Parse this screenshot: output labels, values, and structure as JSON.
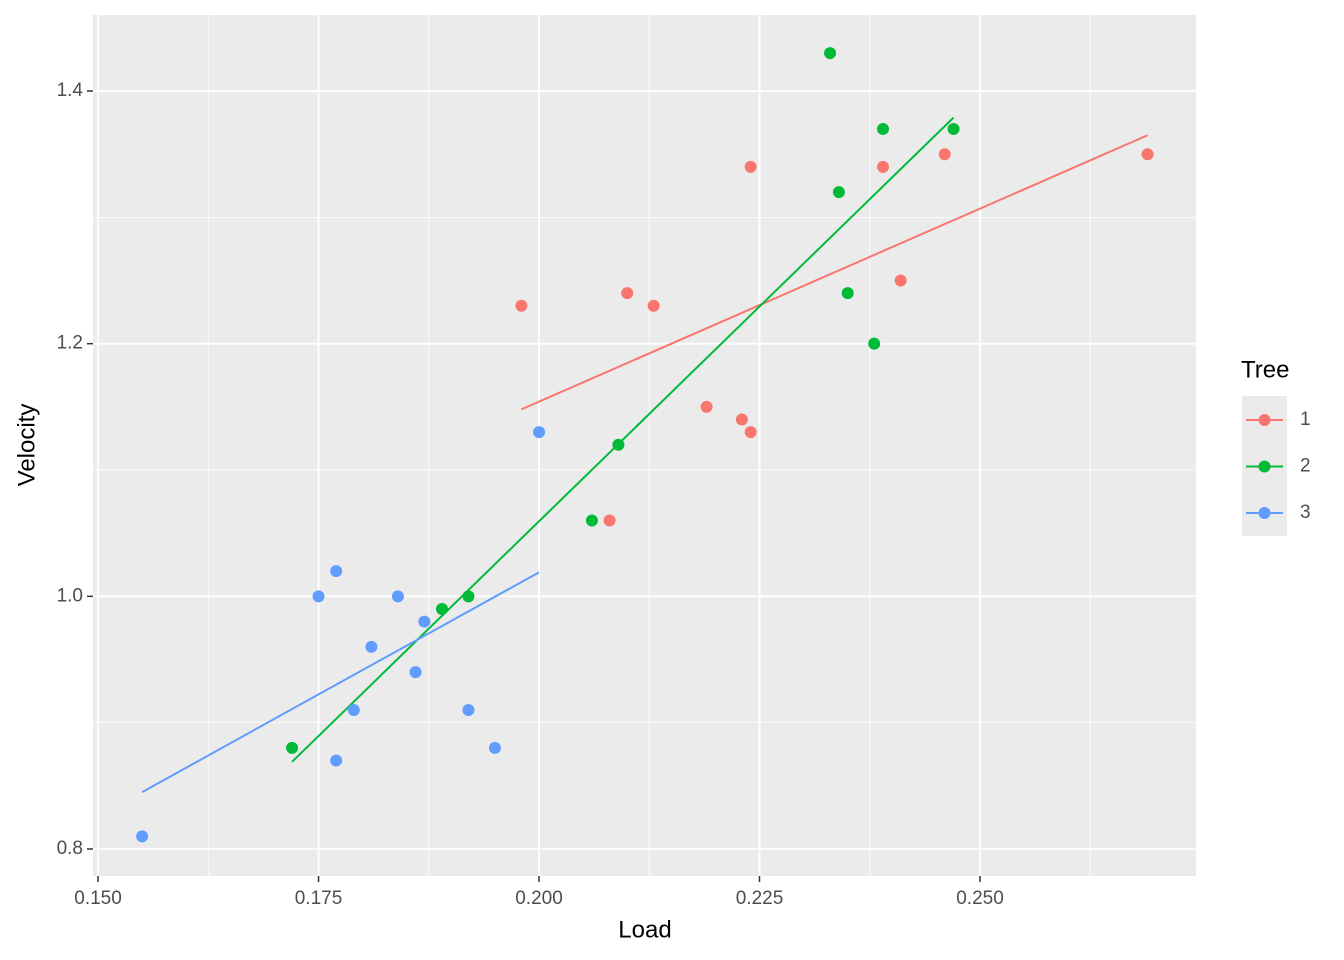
{
  "chart_data": {
    "type": "scatter",
    "x_label": "Load",
    "y_label": "Velocity",
    "legend_title": "Tree",
    "xlim": [
      0.14943,
      0.27449
    ],
    "ylim": [
      0.7786,
      1.4602
    ],
    "xticks": [
      {
        "value": 0.15,
        "label": "0.150"
      },
      {
        "value": 0.175,
        "label": "0.175"
      },
      {
        "value": 0.2,
        "label": "0.200"
      },
      {
        "value": 0.225,
        "label": "0.225"
      },
      {
        "value": 0.25,
        "label": "0.250"
      }
    ],
    "yticks": [
      0.8,
      {
        "value": 1,
        "label": "1.0"
      },
      1.2,
      1.4
    ],
    "grid": true,
    "legend_position": "right",
    "series": [
      {
        "name": "1",
        "color": "#f8766d",
        "x": [
          0.198,
          0.21,
          0.213,
          0.219,
          0.223,
          0.224,
          0.224,
          0.208,
          0.239,
          0.241,
          0.246,
          0.269
        ],
        "values": [
          1.23,
          1.24,
          1.23,
          1.15,
          1.14,
          1.13,
          1.34,
          1.06,
          1.34,
          1.25,
          1.35,
          1.35
        ],
        "fit": {
          "x": [
            0.198,
            0.269
          ],
          "values": [
            1.148,
            1.365
          ]
        }
      },
      {
        "name": "2",
        "color": "#00ba38",
        "x": [
          0.172,
          0.189,
          0.192,
          0.206,
          0.209,
          0.233,
          0.234,
          0.235,
          0.238,
          0.239,
          0.247
        ],
        "values": [
          0.88,
          0.99,
          1.0,
          1.06,
          1.12,
          1.43,
          1.32,
          1.24,
          1.2,
          1.37,
          1.37
        ],
        "fit": {
          "x": [
            0.172,
            0.247
          ],
          "values": [
            0.869,
            1.379
          ]
        }
      },
      {
        "name": "3",
        "color": "#619cff",
        "x": [
          0.155,
          0.175,
          0.177,
          0.177,
          0.179,
          0.181,
          0.184,
          0.186,
          0.187,
          0.192,
          0.195,
          0.2
        ],
        "values": [
          0.81,
          1.0,
          1.02,
          0.87,
          0.91,
          0.96,
          1.0,
          0.94,
          0.98,
          0.91,
          0.88,
          1.13
        ],
        "fit": {
          "x": [
            0.155,
            0.2
          ],
          "values": [
            0.845,
            1.019
          ]
        }
      }
    ]
  }
}
